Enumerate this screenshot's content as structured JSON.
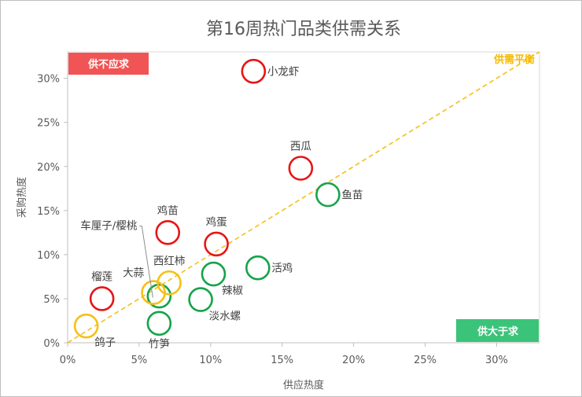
{
  "chart_data": {
    "type": "scatter",
    "title": "第16周热门品类供需关系",
    "xlabel": "供应热度",
    "ylabel": "采购热度",
    "xlim": [
      0,
      0.33
    ],
    "ylim": [
      0,
      0.33
    ],
    "xticks": [
      0,
      0.05,
      0.1,
      0.15,
      0.2,
      0.25,
      0.3
    ],
    "xtick_labels": [
      "0%",
      "5%",
      "10%",
      "15%",
      "20%",
      "25%",
      "30%"
    ],
    "yticks": [
      0,
      0.05,
      0.1,
      0.15,
      0.2,
      0.25,
      0.3
    ],
    "ytick_labels": [
      "0%",
      "5%",
      "10%",
      "15%",
      "20%",
      "25%",
      "30%"
    ],
    "grid": false,
    "diagonal_label": "供需平衡",
    "quadrant_labels": {
      "top_left": "供不应求",
      "bottom_right": "供大于求"
    },
    "colors": {
      "demand": "#e81416",
      "supply": "#16a34a",
      "balance": "#f5c017"
    },
    "points": [
      {
        "name": "小龙虾",
        "x": 0.13,
        "y": 0.308,
        "group": "demand",
        "label_pos": "right"
      },
      {
        "name": "西瓜",
        "x": 0.163,
        "y": 0.198,
        "group": "demand",
        "label_pos": "top"
      },
      {
        "name": "鸡苗",
        "x": 0.07,
        "y": 0.125,
        "group": "demand",
        "label_pos": "top"
      },
      {
        "name": "鸡蛋",
        "x": 0.104,
        "y": 0.112,
        "group": "demand",
        "label_pos": "top"
      },
      {
        "name": "榴莲",
        "x": 0.024,
        "y": 0.05,
        "group": "demand",
        "label_pos": "top"
      },
      {
        "name": "鱼苗",
        "x": 0.182,
        "y": 0.168,
        "group": "supply",
        "label_pos": "right"
      },
      {
        "name": "活鸡",
        "x": 0.133,
        "y": 0.085,
        "group": "supply",
        "label_pos": "right"
      },
      {
        "name": "辣椒",
        "x": 0.102,
        "y": 0.078,
        "group": "supply",
        "label_pos": "bottom-right"
      },
      {
        "name": "淡水螺",
        "x": 0.093,
        "y": 0.049,
        "group": "supply",
        "label_pos": "bottom-right"
      },
      {
        "name": "车厘子/樱桃",
        "x": 0.064,
        "y": 0.053,
        "group": "supply",
        "label_pos": "callout"
      },
      {
        "name": "竹笋",
        "x": 0.064,
        "y": 0.022,
        "group": "supply",
        "label_pos": "bottom"
      },
      {
        "name": "西红柿",
        "x": 0.071,
        "y": 0.068,
        "group": "balance",
        "label_pos": "top"
      },
      {
        "name": "大蒜",
        "x": 0.06,
        "y": 0.057,
        "group": "balance",
        "label_pos": "top-left"
      },
      {
        "name": "鸽子",
        "x": 0.013,
        "y": 0.019,
        "group": "balance",
        "label_pos": "bottom-right"
      }
    ]
  }
}
